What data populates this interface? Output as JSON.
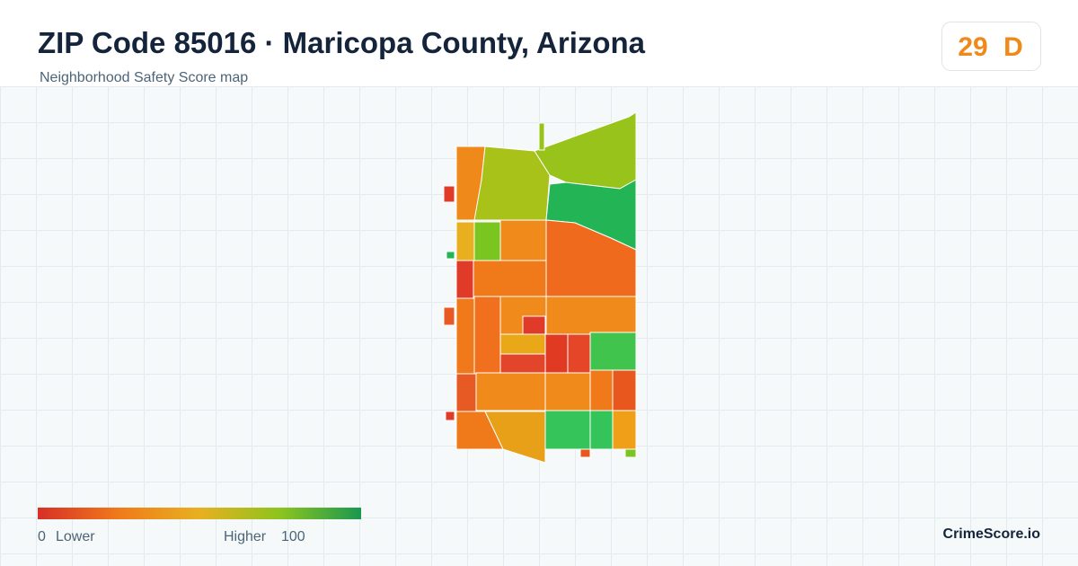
{
  "header": {
    "title": "ZIP Code 85016 · Maricopa County, Arizona",
    "subtitle": "Neighborhood Safety Score map"
  },
  "score": {
    "value": 29,
    "grade": "D"
  },
  "legend": {
    "min": 0,
    "min_label": "Lower",
    "max_label": "Higher",
    "max": 100
  },
  "brand": "CrimeScore.io"
}
